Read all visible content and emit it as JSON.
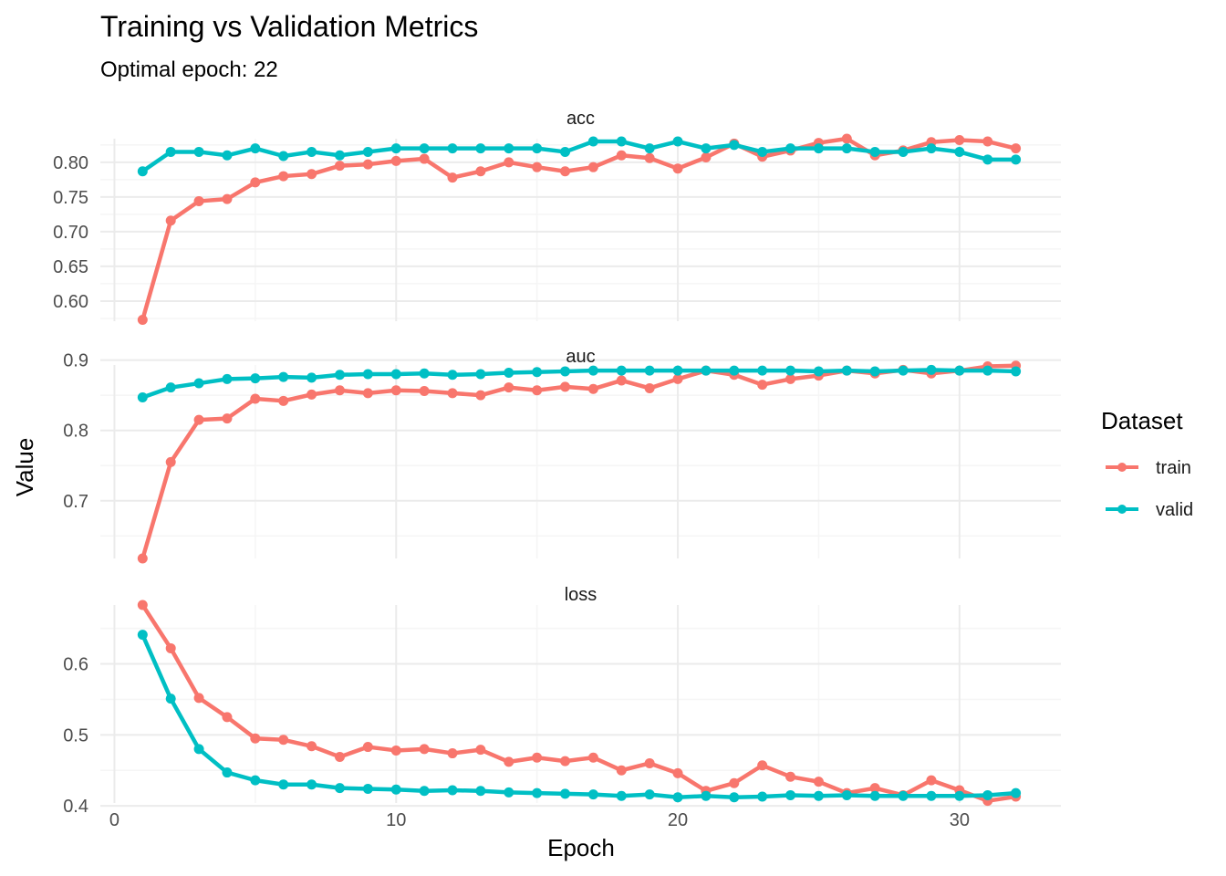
{
  "chart_data": {
    "type": "line",
    "title": "Training vs Validation Metrics",
    "subtitle": "Optimal epoch: 22",
    "xlabel": "Epoch",
    "ylabel": "Value",
    "legend_title": "Dataset",
    "legend_position": "right",
    "grid": true,
    "series_colors": {
      "train": "#F8766D",
      "valid": "#00BFC4"
    },
    "xlim": [
      -0.5,
      33.6
    ],
    "x_ticks": [
      0,
      10,
      20,
      30
    ],
    "x_tick_labels": [
      "0",
      "10",
      "20",
      "30"
    ],
    "x": [
      1,
      2,
      3,
      4,
      5,
      6,
      7,
      8,
      9,
      10,
      11,
      12,
      13,
      14,
      15,
      16,
      17,
      18,
      19,
      20,
      21,
      22,
      23,
      24,
      25,
      26,
      27,
      28,
      29,
      30,
      31,
      32
    ],
    "panels": [
      {
        "name": "acc",
        "ylim": [
          0.571,
          0.834
        ],
        "y_ticks": [
          0.6,
          0.65,
          0.7,
          0.75,
          0.8
        ],
        "y_tick_labels": [
          "0.60",
          "0.65",
          "0.70",
          "0.75",
          "0.80"
        ],
        "series": [
          {
            "name": "train",
            "values": [
              0.573,
              0.716,
              0.744,
              0.747,
              0.771,
              0.78,
              0.783,
              0.795,
              0.797,
              0.802,
              0.805,
              0.778,
              0.787,
              0.8,
              0.793,
              0.787,
              0.793,
              0.81,
              0.806,
              0.791,
              0.807,
              0.827,
              0.808,
              0.817,
              0.828,
              0.834,
              0.81,
              0.817,
              0.829,
              0.832,
              0.83,
              0.82
            ]
          },
          {
            "name": "valid",
            "values": [
              0.787,
              0.815,
              0.815,
              0.81,
              0.82,
              0.809,
              0.815,
              0.81,
              0.815,
              0.82,
              0.82,
              0.82,
              0.82,
              0.82,
              0.82,
              0.815,
              0.83,
              0.83,
              0.82,
              0.83,
              0.82,
              0.825,
              0.815,
              0.82,
              0.82,
              0.82,
              0.815,
              0.815,
              0.82,
              0.815,
              0.804,
              0.804
            ]
          }
        ]
      },
      {
        "name": "auc",
        "ylim": [
          0.618,
          0.893
        ],
        "y_ticks": [
          0.7,
          0.8,
          0.9
        ],
        "y_tick_labels": [
          "0.7",
          "0.8",
          "0.9"
        ],
        "series": [
          {
            "name": "train",
            "values": [
              0.618,
              0.755,
              0.815,
              0.817,
              0.845,
              0.842,
              0.851,
              0.857,
              0.853,
              0.857,
              0.856,
              0.853,
              0.85,
              0.861,
              0.857,
              0.862,
              0.859,
              0.871,
              0.86,
              0.873,
              0.885,
              0.879,
              0.865,
              0.873,
              0.878,
              0.885,
              0.881,
              0.886,
              0.881,
              0.885,
              0.891,
              0.892
            ]
          },
          {
            "name": "valid",
            "values": [
              0.847,
              0.861,
              0.867,
              0.873,
              0.874,
              0.876,
              0.875,
              0.879,
              0.88,
              0.88,
              0.881,
              0.879,
              0.88,
              0.882,
              0.883,
              0.884,
              0.885,
              0.885,
              0.885,
              0.885,
              0.885,
              0.885,
              0.885,
              0.885,
              0.884,
              0.885,
              0.884,
              0.885,
              0.886,
              0.885,
              0.885,
              0.884
            ]
          }
        ]
      },
      {
        "name": "loss",
        "ylim": [
          0.404,
          0.683
        ],
        "y_ticks": [
          0.4,
          0.5,
          0.6
        ],
        "y_tick_labels": [
          "0.4",
          "0.5",
          "0.6"
        ],
        "series": [
          {
            "name": "train",
            "values": [
              0.683,
              0.622,
              0.552,
              0.525,
              0.495,
              0.493,
              0.484,
              0.469,
              0.483,
              0.478,
              0.48,
              0.474,
              0.479,
              0.462,
              0.468,
              0.463,
              0.468,
              0.45,
              0.46,
              0.446,
              0.421,
              0.432,
              0.457,
              0.441,
              0.434,
              0.418,
              0.425,
              0.415,
              0.436,
              0.422,
              0.407,
              0.413
            ]
          },
          {
            "name": "valid",
            "values": [
              0.641,
              0.551,
              0.48,
              0.447,
              0.436,
              0.43,
              0.43,
              0.425,
              0.424,
              0.423,
              0.421,
              0.422,
              0.421,
              0.419,
              0.418,
              0.417,
              0.416,
              0.414,
              0.416,
              0.412,
              0.414,
              0.412,
              0.413,
              0.415,
              0.414,
              0.415,
              0.414,
              0.414,
              0.414,
              0.414,
              0.415,
              0.418
            ]
          }
        ]
      }
    ]
  }
}
